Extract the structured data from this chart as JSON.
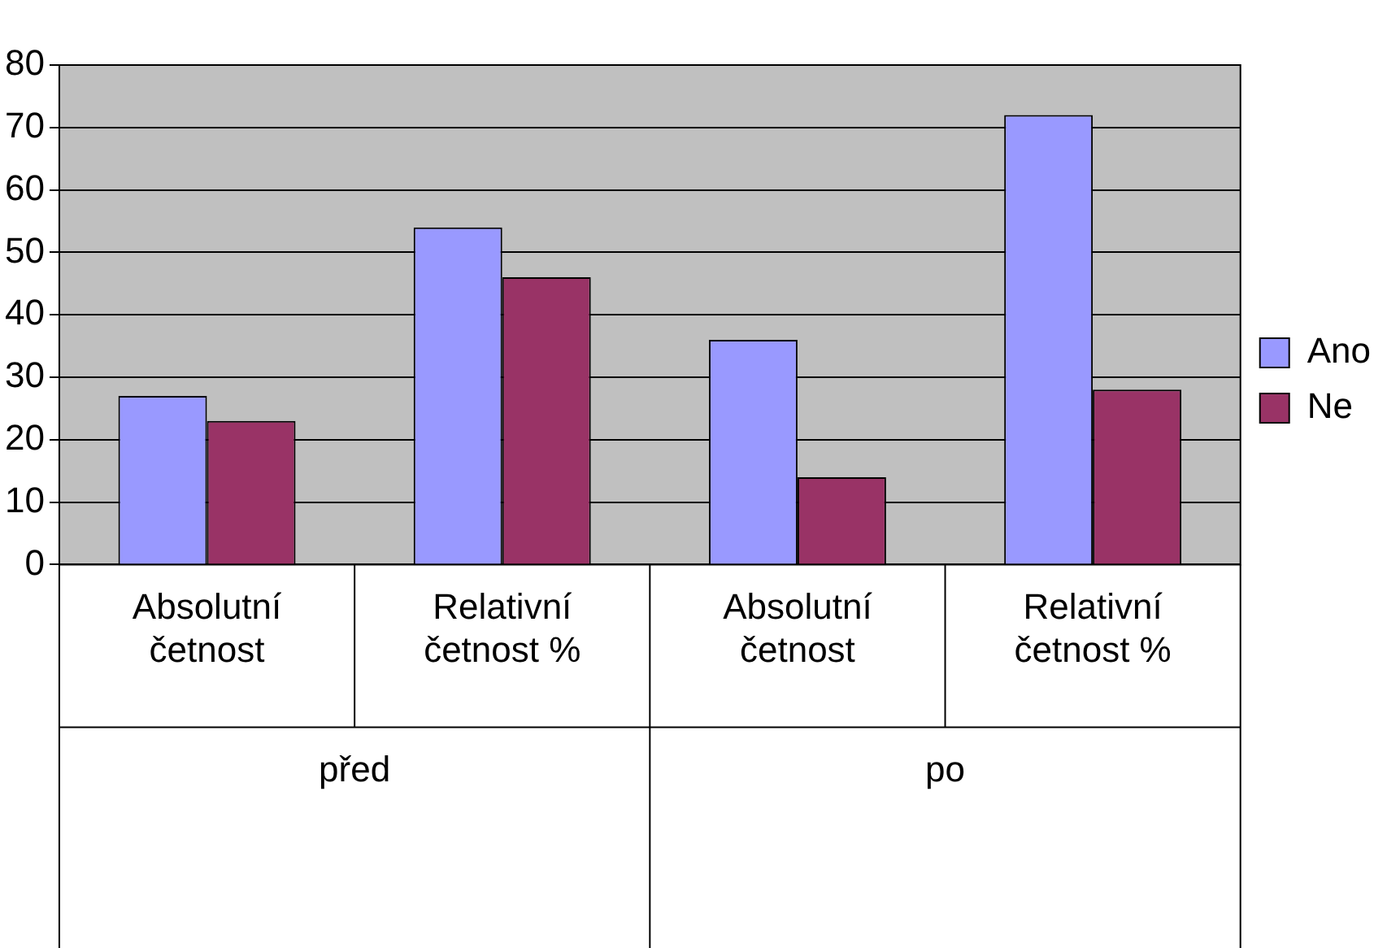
{
  "chart_data": {
    "type": "bar",
    "categories": [
      "Absolutní četnost",
      "Relativní četnost %",
      "Absolutní četnost",
      "Relativní četnost %"
    ],
    "series": [
      {
        "name": "Ano",
        "color": "#9999ff",
        "values": [
          27,
          54,
          36,
          72
        ]
      },
      {
        "name": "Ne",
        "color": "#993366",
        "values": [
          23,
          46,
          14,
          28
        ]
      }
    ],
    "ylim": [
      0,
      80
    ],
    "yticks": [
      0,
      10,
      20,
      30,
      40,
      50,
      60,
      70,
      80
    ],
    "grid": "y",
    "legend": "right",
    "annotations": [
      "před",
      "po"
    ]
  }
}
